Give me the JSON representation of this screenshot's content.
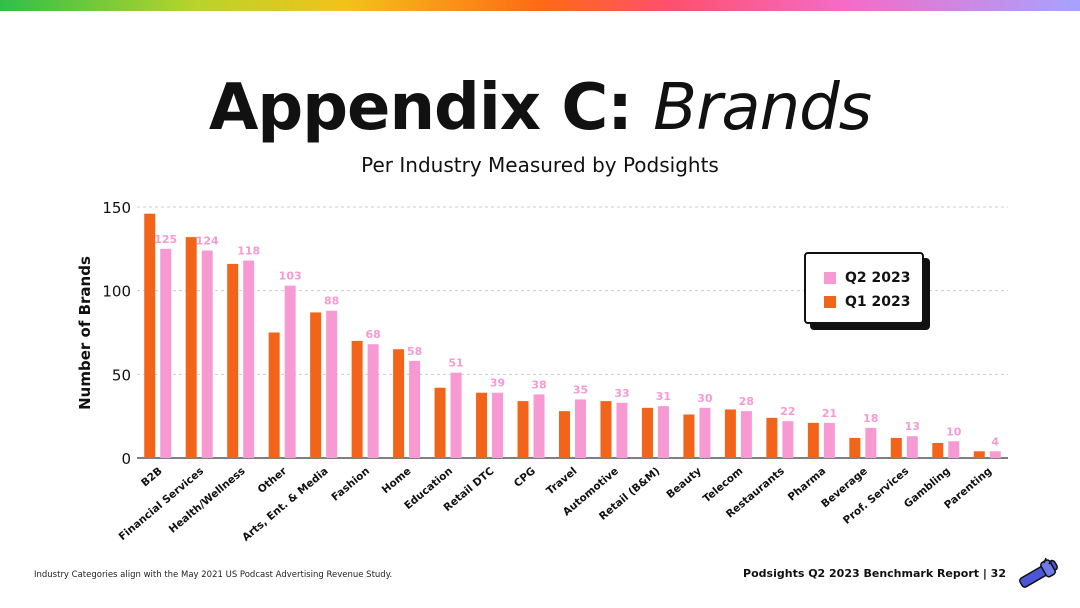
{
  "header": {
    "title_bold": "Appendix C:",
    "title_italic": "Brands",
    "subtitle": "Per Industry Measured by Podsights"
  },
  "chart_data": {
    "type": "bar",
    "ylabel": "Number of Brands",
    "ylim": [
      0,
      150
    ],
    "yticks": [
      0,
      50,
      100,
      150
    ],
    "grid": true,
    "legend_position": "top-right",
    "categories": [
      "B2B",
      "Financial Services",
      "Health/Wellness",
      "Other",
      "Arts, Ent. & Media",
      "Fashion",
      "Home",
      "Education",
      "Retail DTC",
      "CPG",
      "Travel",
      "Automotive",
      "Retail (B&M)",
      "Beauty",
      "Telecom",
      "Restaurants",
      "Pharma",
      "Beverage",
      "Prof. Services",
      "Gambling",
      "Parenting"
    ],
    "series": [
      {
        "name": "Q1 2023",
        "color": "#f26419",
        "values": [
          146,
          132,
          116,
          75,
          87,
          70,
          65,
          42,
          39,
          34,
          28,
          34,
          30,
          26,
          29,
          24,
          21,
          12,
          12,
          9,
          4
        ],
        "labeled": false
      },
      {
        "name": "Q2 2023",
        "color": "#f79ad3",
        "values": [
          125,
          124,
          118,
          103,
          88,
          68,
          58,
          51,
          39,
          38,
          35,
          33,
          31,
          30,
          28,
          22,
          21,
          18,
          13,
          10,
          4
        ],
        "labeled": true
      }
    ]
  },
  "legend": {
    "items": [
      {
        "label": "Q2 2023",
        "color": "#f79ad3"
      },
      {
        "label": "Q1 2023",
        "color": "#f26419"
      }
    ]
  },
  "footer": {
    "note": "Industry Categories align with the May 2021 US Podcast Advertising Revenue Study.",
    "report": "Podsights Q2 2023 Benchmark Report | 32"
  },
  "logo": {
    "icon": "microphone-icon",
    "color": "#4a56d6"
  }
}
